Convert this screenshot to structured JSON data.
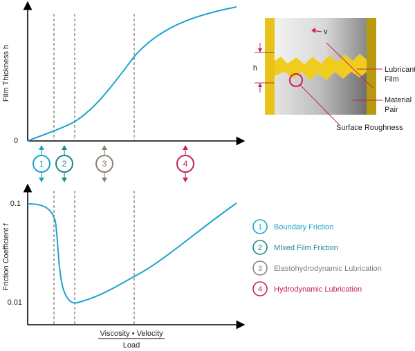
{
  "top_chart": {
    "ylabel": "Film Thickness h",
    "y_tick": "0"
  },
  "bottom_chart": {
    "ylabel": "Friction Coefficient f",
    "y_ticks": [
      "0.1",
      "0.01"
    ],
    "xlabel_numerator": "Viscosity • Velocity",
    "xlabel_denominator": "Load"
  },
  "inset": {
    "v_label": "v",
    "h_label": "h",
    "lubricant_film": [
      "Lubricant",
      "Film"
    ],
    "material_pair": [
      "Material",
      "Pair"
    ],
    "surface_roughness": "Surface Roughness"
  },
  "regimes": [
    {
      "num": "1",
      "label": "Boundary Friction",
      "color": "#1aa3cc"
    },
    {
      "num": "2",
      "label": "MIxed Film Friction",
      "color": "#1a8a86"
    },
    {
      "num": "3",
      "label": "Elastohydrodynamic Lubrication",
      "color": "#8a8074"
    },
    {
      "num": "4",
      "label": "Hydrodynamic Lubrication",
      "color": "#c4244f"
    }
  ],
  "chart_data": [
    {
      "type": "line",
      "title": "",
      "ylabel": "Film Thickness h",
      "xlabel": "Viscosity • Velocity / Load",
      "series": [
        {
          "values_description": "film thickness rising from 0",
          "x": [
            0,
            0.12,
            0.22,
            0.3,
            0.4,
            0.5,
            0.6,
            0.7,
            0.8,
            0.9,
            1.0
          ],
          "y": [
            0,
            0.07,
            0.14,
            0.24,
            0.4,
            0.57,
            0.72,
            0.82,
            0.88,
            0.93,
            0.97
          ]
        }
      ]
    },
    {
      "type": "line",
      "title": "",
      "ylabel": "Friction Coefficient f",
      "xlabel": "Viscosity • Velocity / Load",
      "y_scale": "log",
      "ylim": [
        0.01,
        0.1
      ],
      "series": [
        {
          "x": [
            0,
            0.06,
            0.11,
            0.13,
            0.16,
            0.22,
            0.35,
            0.5,
            0.65,
            0.8,
            1.0
          ],
          "y": [
            0.1,
            0.095,
            0.07,
            0.025,
            0.012,
            0.0105,
            0.014,
            0.02,
            0.028,
            0.042,
            0.1
          ]
        }
      ]
    }
  ]
}
